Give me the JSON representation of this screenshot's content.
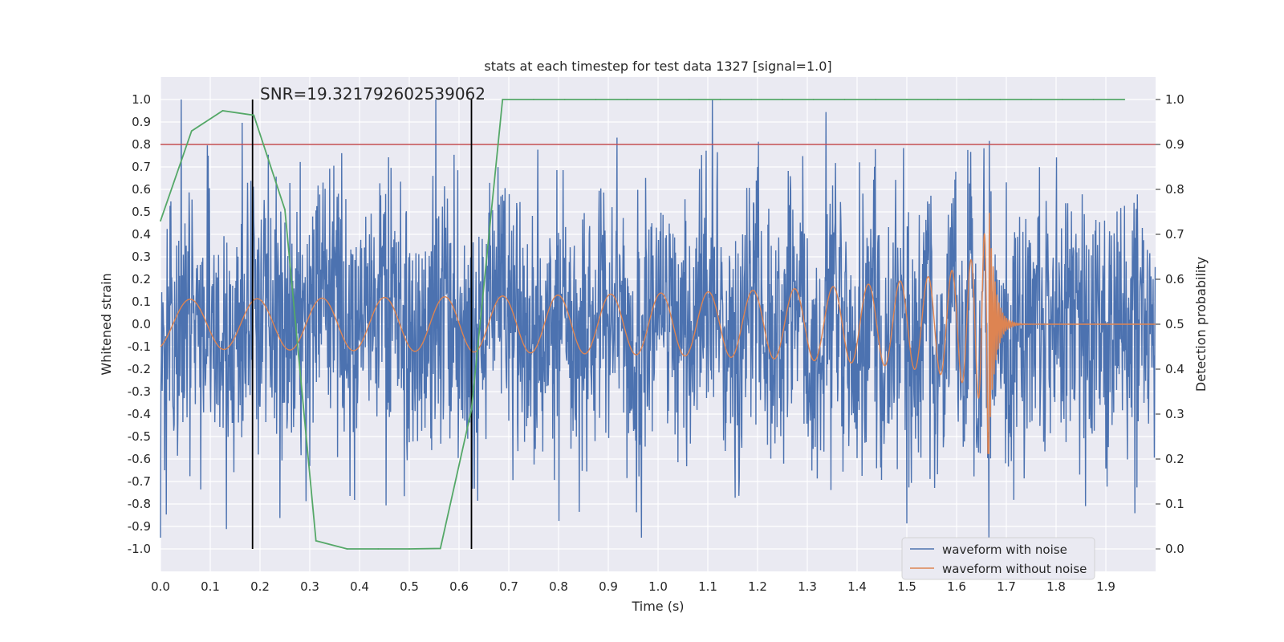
{
  "chart_data": {
    "type": "line",
    "title": "stats at each timestep for test data 1327 [signal=1.0]",
    "xlabel": "Time (s)",
    "ylabel": "Whitened strain",
    "y2label": "Detection probability",
    "xlim": [
      0.0,
      2.0
    ],
    "ylim": [
      -1.1,
      1.1
    ],
    "y2lim": [
      -0.05,
      1.05
    ],
    "xticks": [
      "0.0",
      "0.1",
      "0.2",
      "0.3",
      "0.4",
      "0.5",
      "0.6",
      "0.7",
      "0.8",
      "0.9",
      "1.0",
      "1.1",
      "1.2",
      "1.3",
      "1.4",
      "1.5",
      "1.6",
      "1.7",
      "1.8",
      "1.9"
    ],
    "yticks": [
      "1.0",
      "0.9",
      "0.8",
      "0.7",
      "0.6",
      "0.5",
      "0.4",
      "0.3",
      "0.2",
      "0.1",
      "0.0",
      "-0.1",
      "-0.2",
      "-0.3",
      "-0.4",
      "-0.5",
      "-0.6",
      "-0.7",
      "-0.8",
      "-0.9",
      "-1.0"
    ],
    "y2ticks": [
      "1.0",
      "0.9",
      "0.8",
      "0.7",
      "0.6",
      "0.5",
      "0.4",
      "0.3",
      "0.2",
      "0.1",
      "0.0"
    ],
    "annotation": "SNR=19.321792602539062",
    "threshold_line": {
      "y": 0.8,
      "color": "#c44e52"
    },
    "vertical_markers": [
      0.185,
      0.625
    ],
    "series": [
      {
        "name": "waveform with noise",
        "color": "#4c72b0",
        "axis": "left",
        "kind": "noise",
        "x_range": [
          0.0,
          2.0
        ],
        "approx_std": 0.3,
        "peak_range": [
          -0.95,
          1.0
        ]
      },
      {
        "name": "waveform without noise",
        "color": "#dd8452",
        "axis": "left",
        "kind": "chirp",
        "x_range": [
          0.0,
          2.0
        ],
        "start_amplitude": 0.11,
        "peak_amplitude": 0.6,
        "merger_time": 1.665
      },
      {
        "name": "detection probability",
        "color": "#55a868",
        "axis": "right",
        "x": [
          0.0,
          0.0625,
          0.125,
          0.1875,
          0.25,
          0.3125,
          0.375,
          0.4375,
          0.5,
          0.5625,
          0.625,
          0.6875,
          0.75,
          0.8125,
          0.875,
          0.9375,
          1.0,
          1.0625,
          1.125,
          1.1875,
          1.25,
          1.3125,
          1.375,
          1.4375,
          1.5,
          1.5625,
          1.625,
          1.6875,
          1.75,
          1.8125,
          1.875,
          1.9375
        ],
        "values": [
          0.73,
          0.93,
          0.975,
          0.965,
          0.755,
          0.018,
          0.0,
          0.0,
          0.0,
          0.001,
          0.31,
          1.0,
          1.0,
          1.0,
          1.0,
          1.0,
          1.0,
          1.0,
          1.0,
          1.0,
          1.0,
          1.0,
          1.0,
          1.0,
          1.0,
          1.0,
          1.0,
          1.0,
          1.0,
          1.0,
          1.0,
          1.0
        ]
      }
    ],
    "legend": [
      "waveform with noise",
      "waveform without noise"
    ],
    "legend_position": "bottom-right",
    "grid": true
  }
}
